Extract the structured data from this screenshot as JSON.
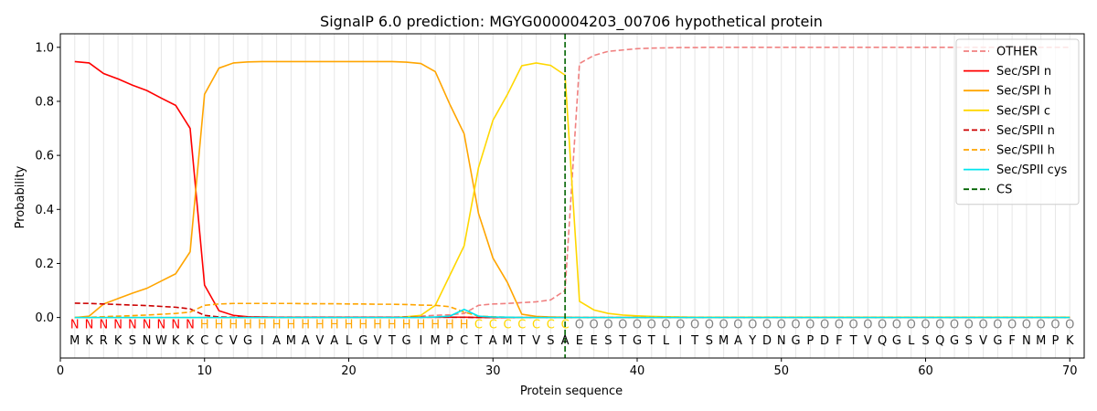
{
  "chart_data": {
    "type": "line",
    "title": "SignalP 6.0 prediction: MGYG000004203_00706 hypothetical protein",
    "xlabel": "Protein sequence",
    "ylabel": "Probability",
    "xlim": [
      0,
      71
    ],
    "ylim": [
      -0.15,
      1.05
    ],
    "xticks": [
      0,
      10,
      20,
      30,
      40,
      50,
      60,
      70
    ],
    "yticks": [
      0.0,
      0.2,
      0.4,
      0.6,
      0.8,
      1.0
    ],
    "legend_position": "top-right",
    "x": [
      1,
      2,
      3,
      4,
      5,
      6,
      7,
      8,
      9,
      10,
      11,
      12,
      13,
      14,
      15,
      16,
      17,
      18,
      19,
      20,
      21,
      22,
      23,
      24,
      25,
      26,
      27,
      28,
      29,
      30,
      31,
      32,
      33,
      34,
      35,
      36,
      37,
      38,
      39,
      40,
      41,
      42,
      43,
      44,
      45,
      46,
      47,
      48,
      49,
      50,
      51,
      52,
      53,
      54,
      55,
      56,
      57,
      58,
      59,
      60,
      61,
      62,
      63,
      64,
      65,
      66,
      67,
      68,
      69,
      70
    ],
    "sequence": [
      "M",
      "K",
      "R",
      "K",
      "S",
      "N",
      "W",
      "K",
      "K",
      "C",
      "C",
      "V",
      "G",
      "I",
      "A",
      "M",
      "A",
      "V",
      "A",
      "L",
      "G",
      "V",
      "T",
      "G",
      "I",
      "M",
      "P",
      "C",
      "T",
      "A",
      "M",
      "T",
      "V",
      "S",
      "A",
      "E",
      "E",
      "S",
      "T",
      "G",
      "T",
      "L",
      "I",
      "T",
      "S",
      "M",
      "A",
      "Y",
      "D",
      "N",
      "G",
      "P",
      "D",
      "F",
      "T",
      "V",
      "Q",
      "G",
      "L",
      "S",
      "Q",
      "G",
      "S",
      "V",
      "G",
      "F",
      "N",
      "M",
      "P",
      "K"
    ],
    "regions": [
      "N",
      "N",
      "N",
      "N",
      "N",
      "N",
      "N",
      "N",
      "N",
      "H",
      "H",
      "H",
      "H",
      "H",
      "H",
      "H",
      "H",
      "H",
      "H",
      "H",
      "H",
      "H",
      "H",
      "H",
      "H",
      "H",
      "H",
      "H",
      "C",
      "C",
      "C",
      "C",
      "C",
      "C",
      "C",
      "O",
      "O",
      "O",
      "O",
      "O",
      "O",
      "O",
      "O",
      "O",
      "O",
      "O",
      "O",
      "O",
      "O",
      "O",
      "O",
      "O",
      "O",
      "O",
      "O",
      "O",
      "O",
      "O",
      "O",
      "O",
      "O",
      "O",
      "O",
      "O",
      "O",
      "O",
      "O",
      "O",
      "O",
      "O"
    ],
    "region_colors": {
      "N": "#ff0000",
      "H": "#ffa500",
      "C": "#ffd700",
      "O": "#808080"
    },
    "cs_position": 35,
    "series": [
      {
        "name": "OTHER",
        "color": "#f08080",
        "dash": "dashed",
        "values": [
          0.0,
          0.0,
          0.0,
          0.0,
          0.0,
          0.0,
          0.0,
          0.0,
          0.0,
          0.0,
          0.0,
          0.0,
          0.0,
          0.0,
          0.0,
          0.0,
          0.0,
          0.0,
          0.0,
          0.0,
          0.0,
          0.0,
          0.0,
          0.003,
          0.005,
          0.008,
          0.01,
          0.015,
          0.045,
          0.05,
          0.052,
          0.055,
          0.058,
          0.065,
          0.1,
          0.94,
          0.97,
          0.985,
          0.99,
          0.995,
          0.997,
          0.998,
          0.999,
          0.999,
          1,
          1,
          1,
          1,
          1,
          1,
          1,
          1,
          1,
          1,
          1,
          1,
          1,
          1,
          1,
          1,
          1,
          1,
          1,
          1,
          1,
          1,
          1,
          1,
          1,
          1
        ]
      },
      {
        "name": "Sec/SPI n",
        "color": "#ff0000",
        "dash": "solid",
        "values": [
          0.947,
          0.942,
          0.903,
          0.883,
          0.86,
          0.84,
          0.812,
          0.785,
          0.7,
          0.12,
          0.025,
          0.008,
          0.003,
          0.002,
          0.001,
          0.001,
          0.001,
          0.001,
          0.001,
          0.001,
          0.001,
          0.001,
          0.001,
          0.001,
          0.001,
          0.001,
          0.001,
          0.001,
          0,
          0,
          0,
          0,
          0,
          0,
          0,
          0,
          0,
          0,
          0,
          0,
          0,
          0,
          0,
          0,
          0,
          0,
          0,
          0,
          0,
          0,
          0,
          0,
          0,
          0,
          0,
          0,
          0,
          0,
          0,
          0,
          0,
          0,
          0,
          0,
          0,
          0,
          0,
          0,
          0,
          0
        ]
      },
      {
        "name": "Sec/SPI h",
        "color": "#ffa500",
        "dash": "solid",
        "values": [
          0.0,
          0.005,
          0.05,
          0.07,
          0.09,
          0.108,
          0.135,
          0.162,
          0.243,
          0.826,
          0.923,
          0.942,
          0.946,
          0.947,
          0.947,
          0.947,
          0.947,
          0.947,
          0.947,
          0.947,
          0.947,
          0.947,
          0.947,
          0.945,
          0.94,
          0.91,
          0.79,
          0.68,
          0.385,
          0.22,
          0.13,
          0.012,
          0.004,
          0.002,
          0.001,
          0,
          0,
          0,
          0,
          0,
          0,
          0,
          0,
          0,
          0,
          0,
          0,
          0,
          0,
          0,
          0,
          0,
          0,
          0,
          0,
          0,
          0,
          0,
          0,
          0,
          0,
          0,
          0,
          0,
          0,
          0,
          0,
          0,
          0,
          0
        ]
      },
      {
        "name": "Sec/SPI c",
        "color": "#ffd700",
        "dash": "solid",
        "values": [
          0,
          0,
          0,
          0,
          0,
          0,
          0,
          0,
          0,
          0,
          0,
          0,
          0,
          0,
          0,
          0,
          0,
          0,
          0,
          0,
          0,
          0,
          0,
          0.003,
          0.008,
          0.045,
          0.155,
          0.265,
          0.555,
          0.73,
          0.825,
          0.932,
          0.942,
          0.933,
          0.897,
          0.06,
          0.028,
          0.015,
          0.009,
          0.006,
          0.004,
          0.003,
          0.002,
          0.001,
          0.001,
          0.001,
          0.001,
          0.001,
          0.001,
          0.001,
          0.001,
          0.001,
          0.001,
          0.001,
          0.001,
          0.001,
          0.001,
          0.001,
          0.001,
          0.001,
          0.001,
          0.001,
          0.001,
          0.001,
          0.001,
          0.001,
          0.001,
          0.001,
          0.001,
          0.001
        ]
      },
      {
        "name": "Sec/SPII n",
        "color": "#cc0000",
        "dash": "dashed",
        "values": [
          0.053,
          0.052,
          0.05,
          0.048,
          0.046,
          0.044,
          0.041,
          0.038,
          0.032,
          0.008,
          0.002,
          0.001,
          0.001,
          0.001,
          0.001,
          0.001,
          0.001,
          0.001,
          0.001,
          0.001,
          0.001,
          0.001,
          0.001,
          0.001,
          0.001,
          0.001,
          0.001,
          0.001,
          0,
          0,
          0,
          0,
          0,
          0,
          0,
          0,
          0,
          0,
          0,
          0,
          0,
          0,
          0,
          0,
          0,
          0,
          0,
          0,
          0,
          0,
          0,
          0,
          0,
          0,
          0,
          0,
          0,
          0,
          0,
          0,
          0,
          0,
          0,
          0,
          0,
          0,
          0,
          0,
          0,
          0
        ]
      },
      {
        "name": "Sec/SPII h",
        "color": "#ffa500",
        "dash": "dashed",
        "values": [
          0.0,
          0.001,
          0.003,
          0.005,
          0.007,
          0.009,
          0.012,
          0.015,
          0.02,
          0.045,
          0.05,
          0.052,
          0.052,
          0.052,
          0.052,
          0.052,
          0.051,
          0.051,
          0.051,
          0.05,
          0.05,
          0.049,
          0.049,
          0.048,
          0.046,
          0.045,
          0.04,
          0.02,
          0.005,
          0.003,
          0.001,
          0,
          0,
          0,
          0,
          0,
          0,
          0,
          0,
          0,
          0,
          0,
          0,
          0,
          0,
          0,
          0,
          0,
          0,
          0,
          0,
          0,
          0,
          0,
          0,
          0,
          0,
          0,
          0,
          0,
          0,
          0,
          0,
          0,
          0,
          0,
          0,
          0,
          0,
          0
        ]
      },
      {
        "name": "Sec/SPII cys",
        "color": "#00e5ee",
        "dash": "solid",
        "values": [
          0,
          0,
          0,
          0,
          0,
          0,
          0,
          0,
          0,
          0,
          0,
          0,
          0,
          0,
          0,
          0,
          0,
          0,
          0,
          0,
          0,
          0,
          0,
          0,
          0,
          0.002,
          0.005,
          0.03,
          0.005,
          0.002,
          0.001,
          0,
          0,
          0,
          0,
          0,
          0,
          0,
          0,
          0,
          0,
          0,
          0,
          0,
          0,
          0,
          0,
          0,
          0,
          0,
          0,
          0,
          0,
          0,
          0,
          0,
          0,
          0,
          0,
          0,
          0,
          0,
          0,
          0,
          0,
          0,
          0,
          0,
          0,
          0
        ]
      }
    ],
    "legend": [
      {
        "label": "OTHER",
        "color": "#f08080",
        "dash": "dashed"
      },
      {
        "label": "Sec/SPI n",
        "color": "#ff0000",
        "dash": "solid"
      },
      {
        "label": "Sec/SPI h",
        "color": "#ffa500",
        "dash": "solid"
      },
      {
        "label": "Sec/SPI c",
        "color": "#ffd700",
        "dash": "solid"
      },
      {
        "label": "Sec/SPII n",
        "color": "#cc0000",
        "dash": "dashed"
      },
      {
        "label": "Sec/SPII h",
        "color": "#ffa500",
        "dash": "dashed"
      },
      {
        "label": "Sec/SPII cys",
        "color": "#00e5ee",
        "dash": "solid"
      },
      {
        "label": "CS",
        "color": "#006400",
        "dash": "dashed"
      }
    ]
  }
}
